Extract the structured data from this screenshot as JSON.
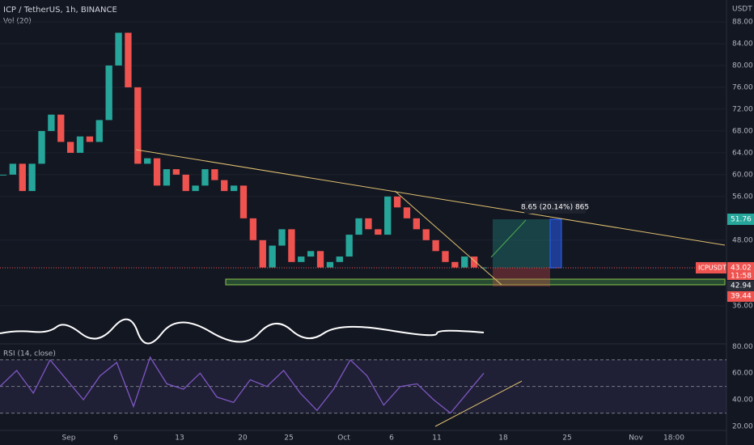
{
  "header": {
    "symbol": "ICP / TetherUS, 1h, BINANCE",
    "volume_label": "Vol (20)",
    "currency": "USDT"
  },
  "price_chart": {
    "type": "candlestick",
    "closes": [
      60,
      62,
      57,
      62,
      68,
      71,
      66,
      64,
      67,
      66,
      70,
      80,
      86,
      76,
      62,
      63,
      58,
      61,
      60,
      57,
      58,
      61,
      59,
      57,
      58,
      52,
      48,
      43,
      47,
      50,
      44,
      45,
      46,
      43,
      44,
      45,
      49,
      52,
      50,
      49,
      56,
      54,
      52,
      50,
      48,
      46,
      44,
      43,
      45,
      43,
      43
    ],
    "up_color": "#26a69a",
    "down_color": "#ef5350",
    "ylim": [
      29,
      92
    ],
    "yticks": [
      {
        "value": 88,
        "label": "88.00"
      },
      {
        "value": 84,
        "label": "84.00"
      },
      {
        "value": 80,
        "label": "80.00"
      },
      {
        "value": 76,
        "label": "76.00"
      },
      {
        "value": 72,
        "label": "72.00"
      },
      {
        "value": 68,
        "label": "68.00"
      },
      {
        "value": 64,
        "label": "64.00"
      },
      {
        "value": 60,
        "label": "60.00"
      },
      {
        "value": 56,
        "label": "56.00"
      },
      {
        "value": 48,
        "label": "48.00"
      },
      {
        "value": 36,
        "label": "36.00"
      }
    ]
  },
  "badges": {
    "last_price": "51.76",
    "symbol": "ICPUSDT",
    "price": "43.02",
    "countdown": "11:58",
    "level": "42.94",
    "stop": "39.44"
  },
  "annotation": "8.65 (20.14%) 865",
  "rsi": {
    "type": "line",
    "label": "RSI (14, close)",
    "color": "#7e57c2",
    "values": [
      50,
      62,
      45,
      70,
      55,
      40,
      58,
      68,
      35,
      72,
      52,
      48,
      60,
      42,
      38,
      55,
      50,
      62,
      45,
      32,
      48,
      70,
      58,
      36,
      50,
      52,
      40,
      30,
      45,
      60
    ],
    "ylim": [
      17,
      82
    ],
    "upper_band": 70,
    "lower_band": 30,
    "midline": 50,
    "yticks": [
      {
        "value": 80,
        "label": "80.00"
      },
      {
        "value": 60,
        "label": "60.00"
      },
      {
        "value": 40,
        "label": "40.00"
      },
      {
        "value": 20,
        "label": "20.00"
      }
    ]
  },
  "x_axis": [
    "Sep",
    "6",
    "13",
    "20",
    "25",
    "Oct",
    "6",
    "11",
    "18",
    "25",
    "Nov",
    "18:00"
  ]
}
